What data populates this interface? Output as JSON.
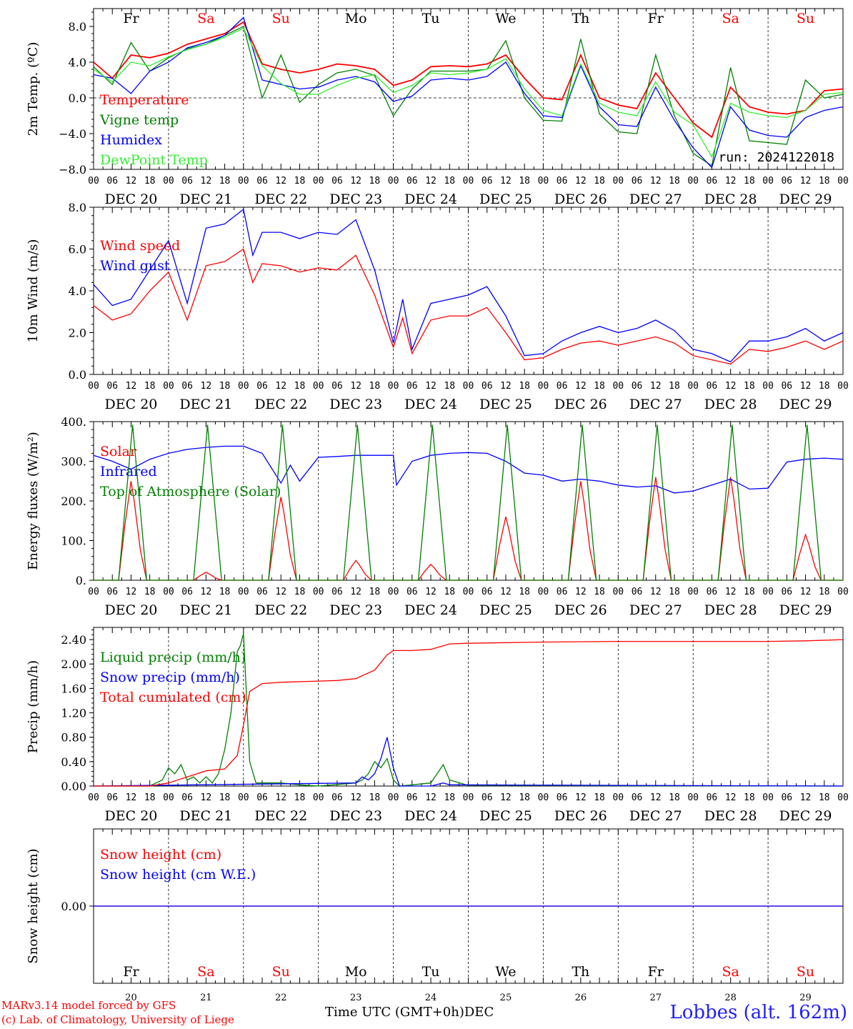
{
  "colors": {
    "red": "#ff0000",
    "green": "#008000",
    "blue": "#0000ff",
    "lightgreen": "#33ee33",
    "black": "#000000"
  },
  "run_label": "run: 2024122018",
  "footer": {
    "model": "MARv3.14 model forced by GFS",
    "credit": "(c) Lab. of Climatology, University of Liege",
    "xaxis_title": "Time UTC (GMT+0h)",
    "month": "DEC",
    "station": "Lobbes (alt. 162m)"
  },
  "days": [
    {
      "name": "Fr",
      "weekend": false,
      "date": "DEC 20",
      "num": "20"
    },
    {
      "name": "Sa",
      "weekend": true,
      "date": "DEC 21",
      "num": "21"
    },
    {
      "name": "Su",
      "weekend": true,
      "date": "DEC 22",
      "num": "22"
    },
    {
      "name": "Mo",
      "weekend": false,
      "date": "DEC 23",
      "num": "23"
    },
    {
      "name": "Tu",
      "weekend": false,
      "date": "DEC 24",
      "num": "24"
    },
    {
      "name": "We",
      "weekend": false,
      "date": "DEC 25",
      "num": "25"
    },
    {
      "name": "Th",
      "weekend": false,
      "date": "DEC 26",
      "num": "26"
    },
    {
      "name": "Fr",
      "weekend": false,
      "date": "DEC 27",
      "num": "27"
    },
    {
      "name": "Sa",
      "weekend": true,
      "date": "DEC 28",
      "num": "28"
    },
    {
      "name": "Su",
      "weekend": true,
      "date": "DEC 29",
      "num": "29"
    }
  ],
  "hour_labels": [
    "00",
    "06",
    "12",
    "18"
  ],
  "final_hour_label": "00",
  "chart_data": [
    {
      "id": "temp",
      "type": "line",
      "ylabel": "2m Temp. (ºC)",
      "ylim": [
        -8,
        10
      ],
      "yticks": [
        -8,
        -4,
        0,
        4,
        8
      ],
      "tick_labels": [
        "−8.0",
        "−4.0",
        "0.0",
        "4.0",
        "8.0"
      ],
      "ref_line": 0,
      "x_unit": "hours since DEC 20 00 UTC",
      "series": [
        {
          "name": "Temperature",
          "color": "#ff0000",
          "x": [
            0,
            6,
            12,
            18,
            24,
            30,
            36,
            42,
            48,
            54,
            60,
            66,
            72,
            78,
            84,
            90,
            96,
            102,
            108,
            114,
            120,
            126,
            132,
            138,
            144,
            150,
            156,
            162,
            168,
            174,
            180,
            186,
            192,
            198,
            204,
            210,
            216,
            222,
            228,
            234,
            240
          ],
          "y": [
            4.0,
            2.2,
            4.8,
            4.5,
            5.0,
            6.0,
            6.6,
            7.2,
            8.5,
            3.8,
            3.2,
            2.8,
            3.2,
            3.8,
            3.6,
            3.2,
            1.4,
            2.0,
            3.5,
            3.6,
            3.5,
            3.8,
            4.8,
            2.2,
            0.0,
            -0.2,
            4.8,
            0.0,
            -0.8,
            -1.2,
            2.8,
            0.0,
            -2.8,
            -4.4,
            1.2,
            -1.0,
            -1.6,
            -1.8,
            -1.4,
            0.8,
            1.0
          ]
        },
        {
          "name": "Vigne temp",
          "color": "#008000",
          "x": [
            0,
            6,
            12,
            18,
            24,
            30,
            36,
            42,
            48,
            54,
            60,
            66,
            72,
            78,
            84,
            90,
            96,
            102,
            108,
            114,
            120,
            126,
            132,
            138,
            144,
            150,
            156,
            162,
            168,
            174,
            180,
            186,
            192,
            198,
            204,
            210,
            216,
            222,
            228,
            234,
            240
          ],
          "y": [
            3.5,
            1.5,
            6.2,
            3.0,
            4.5,
            5.5,
            6.0,
            7.0,
            8.0,
            0.0,
            4.8,
            -0.5,
            1.5,
            2.8,
            3.2,
            2.5,
            -2.0,
            1.0,
            3.0,
            3.0,
            3.0,
            3.2,
            6.4,
            0.0,
            -2.5,
            -2.6,
            6.6,
            -1.8,
            -3.8,
            -4.0,
            4.8,
            -2.0,
            -6.2,
            -7.6,
            3.4,
            -4.8,
            -5.0,
            -5.2,
            2.0,
            0.0,
            0.4
          ]
        },
        {
          "name": "Humidex",
          "color": "#0000ff",
          "x": [
            0,
            6,
            12,
            18,
            24,
            30,
            36,
            42,
            48,
            54,
            60,
            66,
            72,
            78,
            84,
            90,
            96,
            102,
            108,
            114,
            120,
            126,
            132,
            138,
            144,
            150,
            156,
            162,
            168,
            174,
            180,
            186,
            192,
            198,
            204,
            210,
            216,
            222,
            228,
            234,
            240
          ],
          "y": [
            2.6,
            2.2,
            0.5,
            3.0,
            4.0,
            5.6,
            6.2,
            7.0,
            9.0,
            2.0,
            1.5,
            1.0,
            1.2,
            2.0,
            2.4,
            1.8,
            -0.4,
            0.2,
            2.0,
            2.2,
            2.0,
            2.4,
            4.0,
            0.5,
            -2.0,
            -2.2,
            3.6,
            -1.0,
            -3.0,
            -3.2,
            1.2,
            -2.5,
            -5.6,
            -7.8,
            -1.0,
            -3.6,
            -4.2,
            -4.4,
            -2.2,
            -1.4,
            -1.0
          ]
        },
        {
          "name": "DewPoint Temp",
          "color": "#33ee33",
          "x": [
            0,
            6,
            12,
            18,
            24,
            30,
            36,
            42,
            48,
            54,
            60,
            66,
            72,
            78,
            84,
            90,
            96,
            102,
            108,
            114,
            120,
            126,
            132,
            138,
            144,
            150,
            156,
            162,
            168,
            174,
            180,
            186,
            192,
            198,
            204,
            210,
            216,
            222,
            228,
            234,
            240
          ],
          "y": [
            3.2,
            1.8,
            4.0,
            3.6,
            4.6,
            5.4,
            6.0,
            6.8,
            7.8,
            3.6,
            1.6,
            0.4,
            0.4,
            1.4,
            2.2,
            2.6,
            0.6,
            1.4,
            2.8,
            2.6,
            2.8,
            3.2,
            4.4,
            1.0,
            -1.4,
            -2.0,
            3.8,
            -0.6,
            -1.6,
            -2.0,
            1.8,
            -1.6,
            -3.0,
            -6.6,
            -0.6,
            -1.6,
            -2.0,
            -2.2,
            -1.4,
            0.4,
            0.6
          ]
        }
      ]
    },
    {
      "id": "wind",
      "type": "line",
      "ylabel": "10m Wind (m/s)",
      "ylim": [
        0,
        8
      ],
      "yticks": [
        0,
        2,
        4,
        6,
        8
      ],
      "tick_labels": [
        "0.0",
        "2.0",
        "4.0",
        "6.0",
        "8.0"
      ],
      "ref_line": 5,
      "series": [
        {
          "name": "Wind speed",
          "color": "#ff0000",
          "x": [
            0,
            6,
            12,
            18,
            24,
            30,
            36,
            42,
            48,
            51,
            54,
            60,
            66,
            72,
            78,
            84,
            90,
            96,
            99,
            102,
            108,
            114,
            120,
            126,
            132,
            138,
            144,
            150,
            156,
            162,
            168,
            174,
            180,
            186,
            192,
            198,
            204,
            210,
            216,
            222,
            228,
            234,
            240
          ],
          "y": [
            3.3,
            2.6,
            2.9,
            4.0,
            4.9,
            2.6,
            5.2,
            5.4,
            6.0,
            4.4,
            5.3,
            5.2,
            4.9,
            5.1,
            5.0,
            5.7,
            3.8,
            1.3,
            2.7,
            1.0,
            2.6,
            2.8,
            2.8,
            3.2,
            2.0,
            0.7,
            0.8,
            1.2,
            1.5,
            1.6,
            1.4,
            1.6,
            1.8,
            1.5,
            0.9,
            0.7,
            0.5,
            1.2,
            1.1,
            1.3,
            1.6,
            1.2,
            1.6
          ]
        },
        {
          "name": "Wind gust",
          "color": "#0000ff",
          "x": [
            0,
            6,
            12,
            18,
            24,
            30,
            36,
            42,
            48,
            51,
            54,
            60,
            66,
            72,
            78,
            84,
            90,
            96,
            99,
            102,
            108,
            114,
            120,
            126,
            132,
            138,
            144,
            150,
            156,
            162,
            168,
            174,
            180,
            186,
            192,
            198,
            204,
            210,
            216,
            222,
            228,
            234,
            240
          ],
          "y": [
            4.3,
            3.3,
            3.6,
            5.0,
            6.4,
            3.4,
            7.0,
            7.2,
            7.9,
            5.7,
            6.8,
            6.8,
            6.5,
            6.8,
            6.7,
            7.4,
            5.0,
            1.5,
            3.6,
            1.2,
            3.4,
            3.6,
            3.8,
            4.2,
            2.8,
            0.9,
            1.0,
            1.6,
            2.0,
            2.3,
            2.0,
            2.2,
            2.6,
            2.1,
            1.2,
            1.0,
            0.6,
            1.6,
            1.6,
            1.8,
            2.2,
            1.6,
            2.0
          ]
        }
      ]
    },
    {
      "id": "energy",
      "type": "line",
      "ylabel": "Energy fluxes (W/m²)",
      "ylim": [
        0,
        400
      ],
      "yticks": [
        0,
        100,
        200,
        300,
        400
      ],
      "tick_labels": [
        "0.",
        "100.",
        "200.",
        "300.",
        "400."
      ],
      "series": [
        {
          "name": "Solar",
          "color": "#ff0000",
          "peaks": [
            250,
            20,
            210,
            50,
            40,
            160,
            250,
            260,
            260,
            115
          ]
        },
        {
          "name": "Infrared",
          "color": "#0000ff",
          "x": [
            0,
            6,
            12,
            18,
            24,
            30,
            36,
            42,
            48,
            54,
            60,
            63,
            66,
            72,
            78,
            84,
            90,
            96,
            97,
            102,
            108,
            114,
            120,
            126,
            132,
            138,
            144,
            150,
            156,
            162,
            168,
            174,
            180,
            186,
            192,
            198,
            204,
            210,
            216,
            222,
            228,
            234,
            240
          ],
          "y": [
            315,
            300,
            280,
            305,
            320,
            330,
            335,
            338,
            338,
            320,
            245,
            290,
            250,
            310,
            312,
            315,
            315,
            315,
            240,
            300,
            315,
            320,
            322,
            320,
            300,
            270,
            265,
            250,
            255,
            250,
            240,
            235,
            238,
            220,
            225,
            240,
            255,
            230,
            232,
            298,
            305,
            308,
            305
          ]
        },
        {
          "name": "Top of Atmosphere (Solar)",
          "color": "#008000",
          "peak": 392
        }
      ]
    },
    {
      "id": "precip",
      "type": "line",
      "ylabel": "Precip (mm/h)",
      "ylim": [
        0,
        2.6
      ],
      "yticks": [
        0,
        0.4,
        0.8,
        1.2,
        1.6,
        2.0,
        2.4
      ],
      "tick_labels": [
        "0.00",
        "0.40",
        "0.80",
        "1.20",
        "1.60",
        "2.00",
        "2.40"
      ],
      "series": [
        {
          "name": "Liquid precip (mm/h)",
          "color": "#008000",
          "x": [
            0,
            18,
            22,
            24,
            26,
            28,
            30,
            32,
            34,
            36,
            38,
            40,
            42,
            44,
            46,
            47,
            48,
            50,
            52,
            54,
            60,
            66,
            72,
            84,
            86,
            88,
            90,
            92,
            94,
            96,
            98,
            102,
            108,
            110,
            112,
            114,
            120,
            240
          ],
          "y": [
            0,
            0,
            0.1,
            0.3,
            0.2,
            0.35,
            0.1,
            0.15,
            0.05,
            0.15,
            0.05,
            0.2,
            0.6,
            1.2,
            2.2,
            2.3,
            2.5,
            0.4,
            0.05,
            0.05,
            0.05,
            0.02,
            0,
            0.05,
            0.1,
            0.2,
            0.4,
            0.3,
            0.45,
            0.1,
            0,
            0.02,
            0.05,
            0.2,
            0.35,
            0.1,
            0.01,
            0
          ]
        },
        {
          "name": "Snow precip (mm/h)",
          "color": "#0000ff",
          "x": [
            0,
            84,
            86,
            88,
            90,
            92,
            94,
            96,
            98,
            108,
            112,
            114,
            240
          ],
          "y": [
            0,
            0.05,
            0.15,
            0.1,
            0.2,
            0.45,
            0.8,
            0.3,
            0,
            0,
            0.05,
            0.02,
            0
          ]
        },
        {
          "name": "Total cumulated (cm)",
          "color": "#ff0000",
          "x": [
            0,
            18,
            24,
            30,
            36,
            42,
            46,
            48,
            50,
            54,
            60,
            72,
            78,
            84,
            90,
            94,
            96,
            102,
            108,
            114,
            120,
            144,
            168,
            192,
            216,
            228,
            240
          ],
          "y": [
            0,
            0,
            0.05,
            0.15,
            0.25,
            0.28,
            0.5,
            1.0,
            1.55,
            1.68,
            1.7,
            1.72,
            1.73,
            1.76,
            1.9,
            2.15,
            2.22,
            2.22,
            2.24,
            2.33,
            2.34,
            2.36,
            2.37,
            2.37,
            2.37,
            2.38,
            2.4
          ]
        }
      ]
    },
    {
      "id": "snow",
      "type": "line",
      "ylabel": "Snow height (cm)",
      "ylim": [
        -1,
        1
      ],
      "yticks": [
        0
      ],
      "tick_labels": [
        "0.00"
      ],
      "series": [
        {
          "name": "Snow height (cm)",
          "color": "#ff0000",
          "x": [
            0,
            240
          ],
          "y": [
            0,
            0
          ]
        },
        {
          "name": "Snow height (cm W.E.)",
          "color": "#0000ff",
          "x": [
            0,
            240
          ],
          "y": [
            0,
            0
          ]
        }
      ]
    }
  ]
}
